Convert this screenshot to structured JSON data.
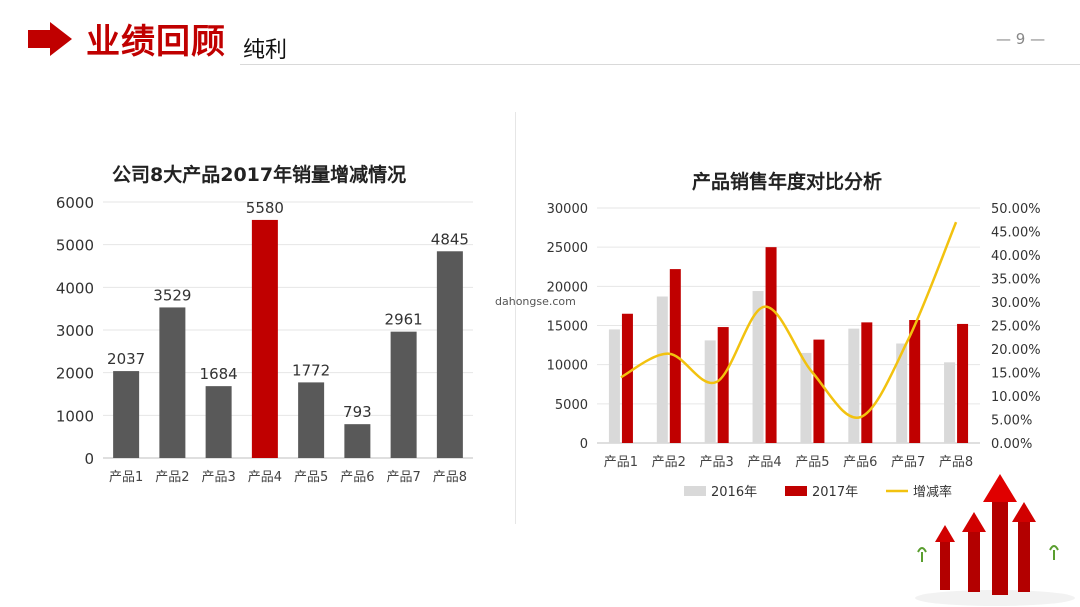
{
  "header": {
    "title": "业绩回顾",
    "subtitle": "纯利",
    "page_number": "— 9 —"
  },
  "watermark": "dahongse.com",
  "colors": {
    "brand_red": "#c00000",
    "dark_bar": "#595959",
    "light_bar": "#d9d9d9",
    "line_gold": "#f2c20f"
  },
  "chart_data": [
    {
      "type": "bar",
      "title": "公司8大产品2017年销量增减情况",
      "categories": [
        "产品1",
        "产品2",
        "产品3",
        "产品4",
        "产品5",
        "产品6",
        "产品7",
        "产品8"
      ],
      "values": [
        2037,
        3529,
        1684,
        5580,
        1772,
        793,
        2961,
        4845
      ],
      "value_labels": [
        "2037",
        "3529",
        "1684",
        "5580",
        "1772",
        "793",
        "2961",
        "4845"
      ],
      "highlight_index": 3,
      "ylim": [
        0,
        6000
      ],
      "yticks": [
        "0",
        "1000",
        "2000",
        "3000",
        "4000",
        "5000",
        "6000"
      ],
      "grid": true
    },
    {
      "type": "bar",
      "title": "产品销售年度对比分析",
      "categories": [
        "产品1",
        "产品2",
        "产品3",
        "产品4",
        "产品5",
        "产品6",
        "产品7",
        "产品8"
      ],
      "series": [
        {
          "name": "2016年",
          "type": "bar",
          "values": [
            14500,
            18700,
            13100,
            19400,
            11500,
            14600,
            12700,
            10300
          ]
        },
        {
          "name": "2017年",
          "type": "bar",
          "values": [
            16500,
            22200,
            14800,
            25000,
            13200,
            15400,
            15700,
            15200
          ]
        },
        {
          "name": "增减率",
          "type": "line",
          "axis": "right",
          "values": [
            0.14,
            0.19,
            0.13,
            0.29,
            0.15,
            0.055,
            0.22,
            0.47
          ]
        }
      ],
      "ylim": [
        0,
        30000
      ],
      "yticks": [
        "0",
        "5000",
        "10000",
        "15000",
        "20000",
        "25000",
        "30000"
      ],
      "y2lim": [
        0,
        0.5
      ],
      "y2ticks": [
        "0.00%",
        "5.00%",
        "10.00%",
        "15.00%",
        "20.00%",
        "25.00%",
        "30.00%",
        "35.00%",
        "40.00%",
        "45.00%",
        "50.00%"
      ],
      "legend": "bottom",
      "grid": true
    }
  ]
}
